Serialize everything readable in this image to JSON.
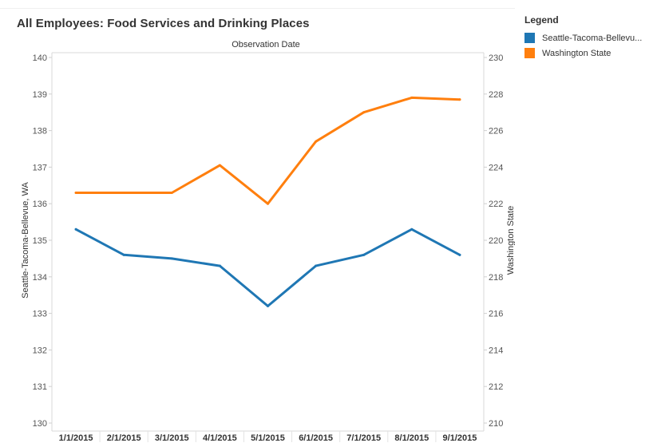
{
  "chart_data": {
    "type": "line",
    "title": "All Employees: Food Services and Drinking Places",
    "xlabel": "Observation Date",
    "ylabel_left": "Seattle-Tacoma-Bellevue, WA",
    "ylabel_right": "Washington State",
    "categories": [
      "1/1/2015",
      "2/1/2015",
      "3/1/2015",
      "4/1/2015",
      "5/1/2015",
      "6/1/2015",
      "7/1/2015",
      "8/1/2015",
      "9/1/2015"
    ],
    "left_axis": {
      "ylim": [
        130,
        140
      ],
      "ticks": [
        "130",
        "131",
        "132",
        "133",
        "134",
        "135",
        "136",
        "137",
        "138",
        "139",
        "140"
      ]
    },
    "right_axis": {
      "ylim": [
        210,
        230
      ],
      "ticks": [
        "210",
        "212",
        "214",
        "216",
        "218",
        "220",
        "222",
        "224",
        "226",
        "228",
        "230"
      ]
    },
    "series": [
      {
        "name": "Seattle-Tacoma-Bellevue, WA",
        "axis": "left",
        "color": "#1f77b4",
        "values": [
          135.3,
          134.6,
          134.5,
          134.3,
          133.2,
          134.3,
          134.6,
          135.3,
          134.6
        ]
      },
      {
        "name": "Washington State",
        "axis": "right",
        "color": "#ff7f0e",
        "values": [
          222.6,
          222.6,
          222.6,
          224.1,
          222.0,
          225.4,
          227.0,
          227.8,
          227.7
        ]
      }
    ]
  },
  "legend": {
    "title": "Legend",
    "items": [
      {
        "label": "Seattle-Tacoma-Bellevu...",
        "color": "#1f77b4"
      },
      {
        "label": "Washington State",
        "color": "#ff7f0e"
      }
    ]
  }
}
